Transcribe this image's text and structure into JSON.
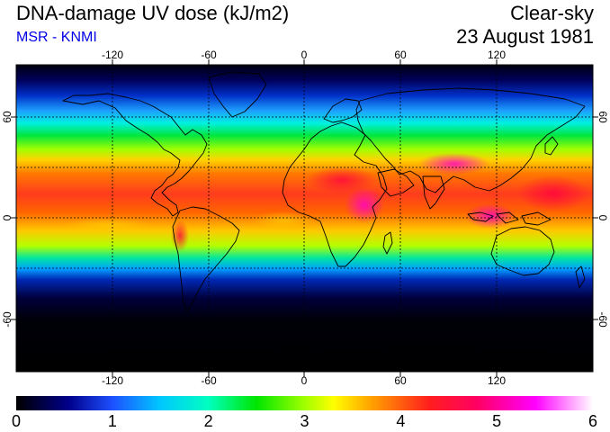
{
  "header": {
    "title": "DNA-damage UV dose (kJ/m2)",
    "subtitle": "MSR - KNMI",
    "condition": "Clear-sky",
    "date": "23 August 1981"
  },
  "map": {
    "longitude_ticks": [
      "-120",
      "-60",
      "0",
      "60",
      "120"
    ],
    "latitude_ticks_left": [
      "60",
      "0",
      "-60"
    ],
    "latitude_ticks_right": [
      "60",
      "0",
      "-60"
    ],
    "grid": true,
    "grid_style": "dotted"
  },
  "colorbar": {
    "labels": [
      "0",
      "1",
      "2",
      "3",
      "4",
      "5",
      "6"
    ],
    "range": [
      0,
      6
    ],
    "stops": [
      {
        "value": 0.0,
        "color": "#000000"
      },
      {
        "value": 0.55,
        "color": "#00008c"
      },
      {
        "value": 1.0,
        "color": "#1e50ff"
      },
      {
        "value": 1.5,
        "color": "#00c8ff"
      },
      {
        "value": 2.0,
        "color": "#00ffc0"
      },
      {
        "value": 2.5,
        "color": "#00e600"
      },
      {
        "value": 3.0,
        "color": "#a0ff00"
      },
      {
        "value": 3.3,
        "color": "#ffff00"
      },
      {
        "value": 3.7,
        "color": "#ffa000"
      },
      {
        "value": 4.3,
        "color": "#ff1e1e"
      },
      {
        "value": 4.8,
        "color": "#ff0064"
      },
      {
        "value": 5.4,
        "color": "#ff00ff"
      },
      {
        "value": 6.0,
        "color": "#ffffff"
      }
    ]
  }
}
